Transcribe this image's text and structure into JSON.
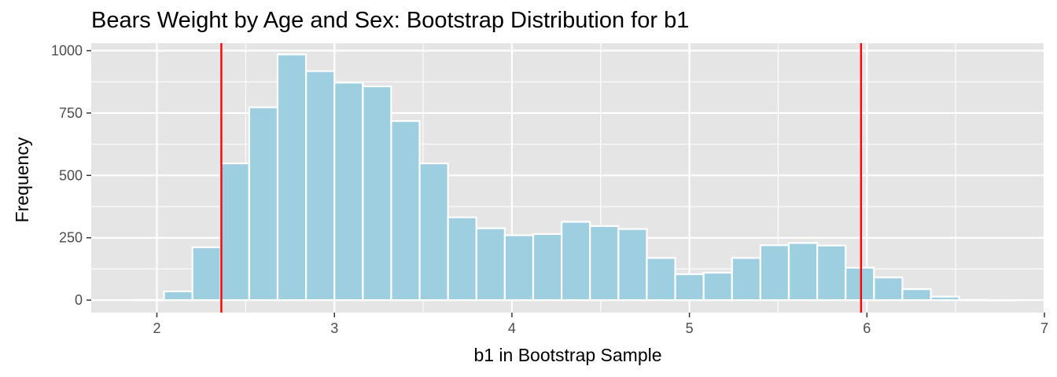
{
  "chart_data": {
    "type": "bar",
    "title": "Bears Weight by Age and Sex: Bootstrap Distribution for b1",
    "xlabel": "b1 in Bootstrap Sample",
    "ylabel": "Frequency",
    "xlim": [
      1.63,
      7.0
    ],
    "ylim": [
      -50,
      1030
    ],
    "x_ticks": [
      2,
      3,
      4,
      5,
      6,
      7
    ],
    "y_ticks": [
      0,
      250,
      500,
      750,
      1000
    ],
    "bin_width": 0.16,
    "bins": [
      {
        "start": 1.88,
        "value": 1
      },
      {
        "start": 2.04,
        "value": 35
      },
      {
        "start": 2.2,
        "value": 212
      },
      {
        "start": 2.36,
        "value": 548
      },
      {
        "start": 2.52,
        "value": 773
      },
      {
        "start": 2.68,
        "value": 985
      },
      {
        "start": 2.84,
        "value": 918
      },
      {
        "start": 3.0,
        "value": 872
      },
      {
        "start": 3.16,
        "value": 857
      },
      {
        "start": 3.32,
        "value": 718
      },
      {
        "start": 3.48,
        "value": 548
      },
      {
        "start": 3.64,
        "value": 332
      },
      {
        "start": 3.8,
        "value": 288
      },
      {
        "start": 3.96,
        "value": 260
      },
      {
        "start": 4.12,
        "value": 265
      },
      {
        "start": 4.28,
        "value": 314
      },
      {
        "start": 4.44,
        "value": 297
      },
      {
        "start": 4.6,
        "value": 285
      },
      {
        "start": 4.76,
        "value": 169
      },
      {
        "start": 4.92,
        "value": 104
      },
      {
        "start": 5.08,
        "value": 110
      },
      {
        "start": 5.24,
        "value": 169
      },
      {
        "start": 5.4,
        "value": 220
      },
      {
        "start": 5.56,
        "value": 229
      },
      {
        "start": 5.72,
        "value": 219
      },
      {
        "start": 5.88,
        "value": 130
      },
      {
        "start": 6.04,
        "value": 91
      },
      {
        "start": 6.2,
        "value": 44
      },
      {
        "start": 6.36,
        "value": 14
      },
      {
        "start": 6.52,
        "value": 1
      },
      {
        "start": 6.68,
        "value": 0
      }
    ],
    "vlines": [
      2.363,
      5.967
    ],
    "grid": true,
    "colors": {
      "bar_fill": "#9ecfe0",
      "bar_outline": "#ffffff",
      "panel_background": "#e5e5e5",
      "grid_major": "#ffffff",
      "vline": "#ff0000"
    }
  }
}
